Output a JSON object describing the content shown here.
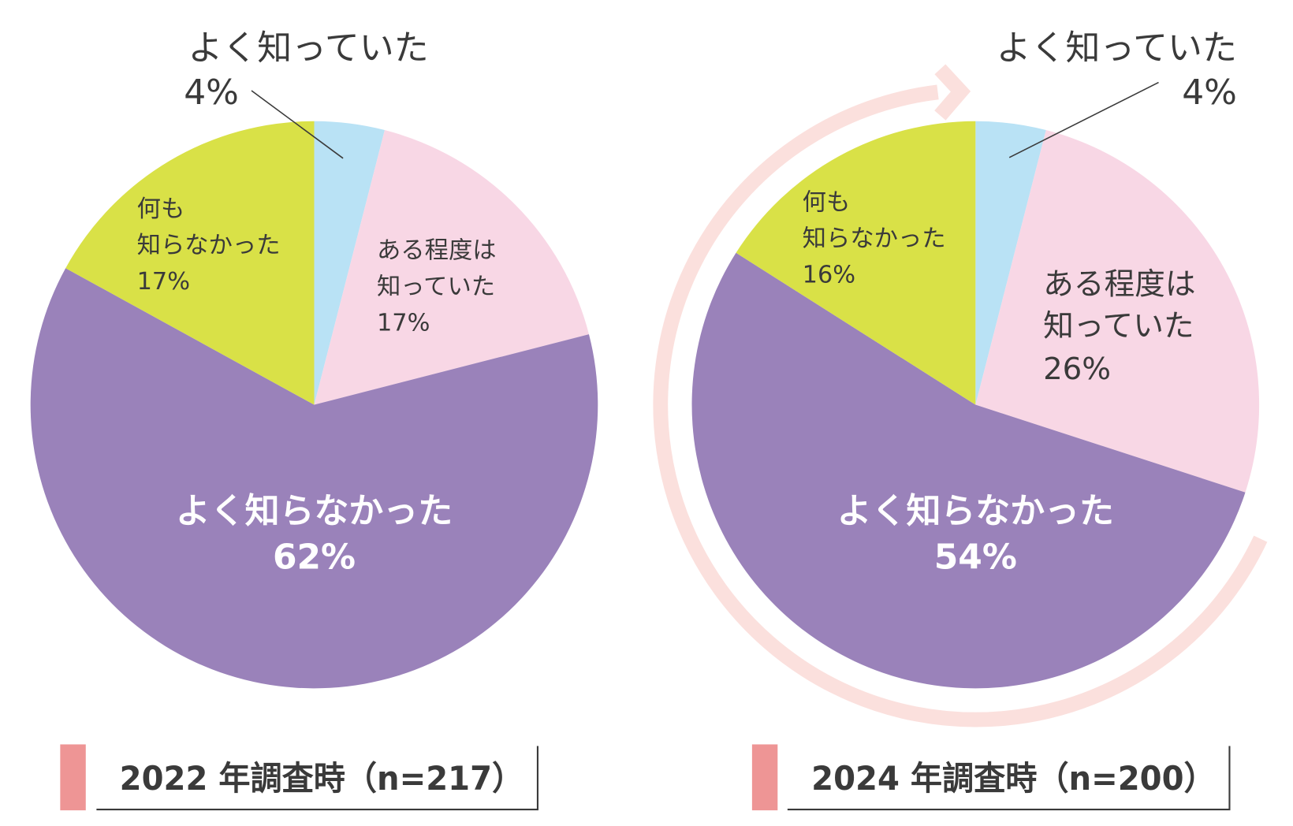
{
  "chart_data": [
    {
      "type": "pie",
      "title": "2022 年調査時（n=217）",
      "start": "top",
      "direction": "clockwise",
      "slices": [
        {
          "label": "よく知っていた",
          "lines": [
            "よく知っていた"
          ],
          "value": 4,
          "value_label": "4%",
          "color": "#b9e2f5"
        },
        {
          "label": "ある程度は知っていた",
          "lines": [
            "ある程度は",
            "知っていた"
          ],
          "value": 17,
          "value_label": "17%",
          "color": "#f8d7e5"
        },
        {
          "label": "よく知らなかった",
          "lines": [
            "よく知らなかった"
          ],
          "value": 62,
          "value_label": "62%",
          "color": "#9a82ba"
        },
        {
          "label": "何も知らなかった",
          "lines": [
            "何も",
            "知らなかった"
          ],
          "value": 17,
          "value_label": "17%",
          "color": "#d9e147"
        }
      ]
    },
    {
      "type": "pie",
      "title": "2024 年調査時（n=200）",
      "start": "top",
      "direction": "clockwise",
      "slices": [
        {
          "label": "よく知っていた",
          "lines": [
            "よく知っていた"
          ],
          "value": 4,
          "value_label": "4%",
          "color": "#b9e2f5"
        },
        {
          "label": "ある程度は知っていた",
          "lines": [
            "ある程度は",
            "知っていた"
          ],
          "value": 26,
          "value_label": "26%",
          "color": "#f8d7e5"
        },
        {
          "label": "よく知らなかった",
          "lines": [
            "よく知らなかった"
          ],
          "value": 54,
          "value_label": "54%",
          "color": "#9a82ba"
        },
        {
          "label": "何も知らなかった",
          "lines": [
            "何も",
            "知らなかった"
          ],
          "value": 16,
          "value_label": "16%",
          "color": "#d9e147"
        }
      ]
    }
  ],
  "colors": {
    "legend_bar": "#ee9595",
    "arrow": "#fbe0dd",
    "text": "#3a3a3a"
  }
}
